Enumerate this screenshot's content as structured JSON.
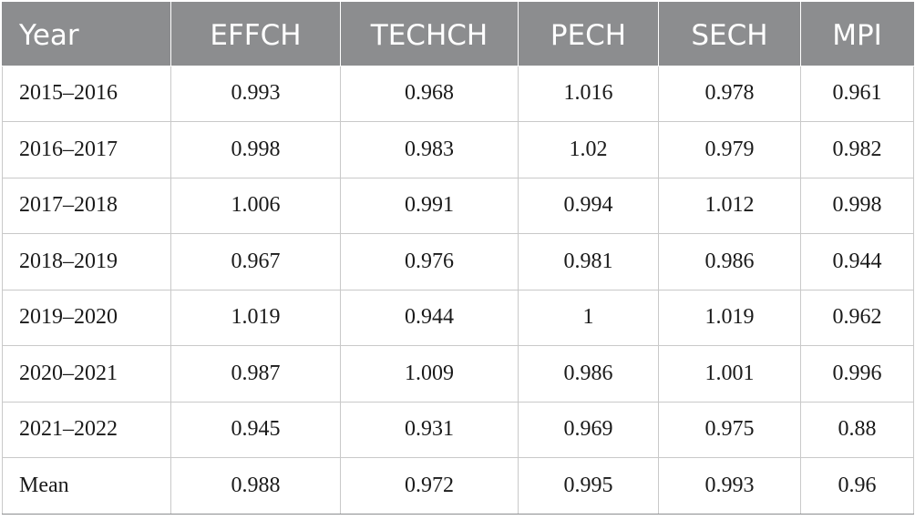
{
  "chart_data": {
    "type": "table",
    "columns": [
      "Year",
      "EFFCH",
      "TECHCH",
      "PECH",
      "SECH",
      "MPI"
    ],
    "rows": [
      [
        "2015–2016",
        "0.993",
        "0.968",
        "1.016",
        "0.978",
        "0.961"
      ],
      [
        "2016–2017",
        "0.998",
        "0.983",
        "1.02",
        "0.979",
        "0.982"
      ],
      [
        "2017–2018",
        "1.006",
        "0.991",
        "0.994",
        "1.012",
        "0.998"
      ],
      [
        "2018–2019",
        "0.967",
        "0.976",
        "0.981",
        "0.986",
        "0.944"
      ],
      [
        "2019–2020",
        "1.019",
        "0.944",
        "1",
        "1.019",
        "0.962"
      ],
      [
        "2020–2021",
        "0.987",
        "1.009",
        "0.986",
        "1.001",
        "0.996"
      ],
      [
        "2021–2022",
        "0.945",
        "0.931",
        "0.969",
        "0.975",
        "0.88"
      ],
      [
        "Mean",
        "0.988",
        "0.972",
        "0.995",
        "0.993",
        "0.96"
      ]
    ]
  },
  "colors": {
    "header_background": "#8c8d8f",
    "header_text": "#ffffff",
    "cell_border": "#c9c9c9",
    "body_text": "#1a1a1a"
  }
}
